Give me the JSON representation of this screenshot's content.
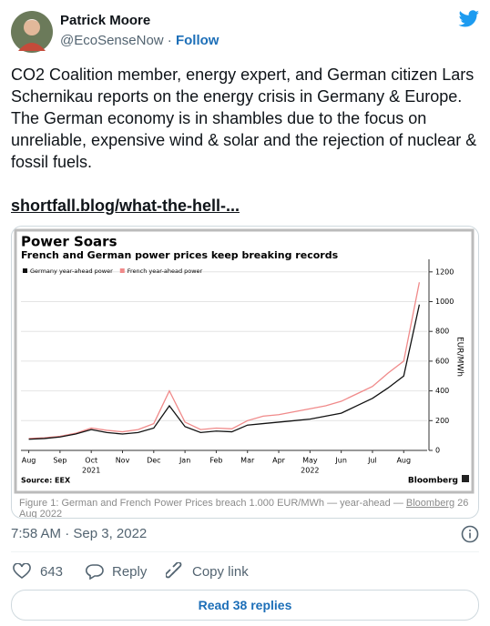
{
  "author": {
    "name": "Patrick Moore",
    "handle": "@EcoSenseNow",
    "separator": "·",
    "follow": "Follow"
  },
  "tweet_text": "CO2 Coalition member, energy expert, and German citizen Lars Schernikau reports on the energy crisis in Germany & Europe. The German economy is in shambles due to the focus on unreliable, expensive wind & solar and the rejection of nuclear & fossil fuels.",
  "link": "shortfall.blog/what-the-hell-...",
  "chart_data": {
    "type": "line",
    "title": "Power Soars",
    "subtitle": "French and German power prices keep breaking records",
    "categories": [
      "Aug",
      null,
      "Sep",
      null,
      "Oct",
      null,
      "Nov",
      null,
      "Dec",
      null,
      "Jan",
      null,
      "Feb",
      null,
      "Mar",
      null,
      "Apr",
      null,
      "May",
      null,
      "Jun",
      null,
      "Jul",
      null,
      "Aug",
      null
    ],
    "x_year_labels": [
      "2021",
      "2022"
    ],
    "series": [
      {
        "name": "Germany year-ahead power",
        "color": "#111111",
        "values": [
          75,
          80,
          90,
          110,
          140,
          120,
          110,
          120,
          150,
          300,
          160,
          120,
          130,
          125,
          170,
          180,
          190,
          200,
          210,
          230,
          250,
          300,
          350,
          420,
          500,
          980
        ]
      },
      {
        "name": "French year-ahead power",
        "color": "#f08a8a",
        "values": [
          80,
          85,
          95,
          115,
          150,
          135,
          125,
          140,
          180,
          400,
          190,
          140,
          150,
          145,
          200,
          230,
          240,
          260,
          280,
          300,
          330,
          380,
          430,
          520,
          600,
          1130
        ]
      }
    ],
    "ylim": [
      0,
      1260
    ],
    "yticks": [
      0,
      200,
      400,
      600,
      800,
      1000,
      1200
    ],
    "ylabel": "EUR/MWh",
    "y_axis_side": "right",
    "grid": true,
    "source": "Source: EEX",
    "brand": "Bloomberg"
  },
  "caption": [
    "Figure 1: German and French Power Prices breach 1.000 EUR/MWh — year-ahead — ",
    "Bloomberg",
    " 26 Aug 2022"
  ],
  "timestamp": "7:58 AM · Sep 3, 2022",
  "actions": {
    "likes": 643,
    "reply": "Reply",
    "copy_link": "Copy link"
  },
  "read_replies": "Read 38 replies"
}
